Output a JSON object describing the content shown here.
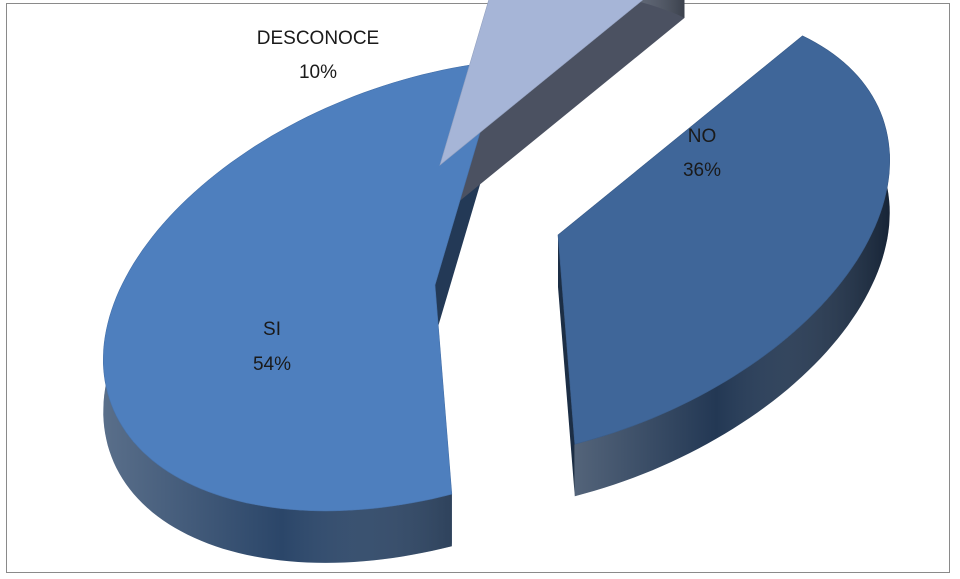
{
  "chart_data": {
    "type": "pie",
    "variant": "3d-exploded",
    "slices": [
      {
        "label": "NO",
        "value": 36,
        "value_label": "36%",
        "color": "#3F6699"
      },
      {
        "label": "SI",
        "value": 54,
        "value_label": "54%",
        "color": "#4E7FBE"
      },
      {
        "label": "DESCONOCE",
        "value": 10,
        "value_label": "10%",
        "color": "#A6B5D7"
      }
    ],
    "legend": "none",
    "grid": false
  }
}
